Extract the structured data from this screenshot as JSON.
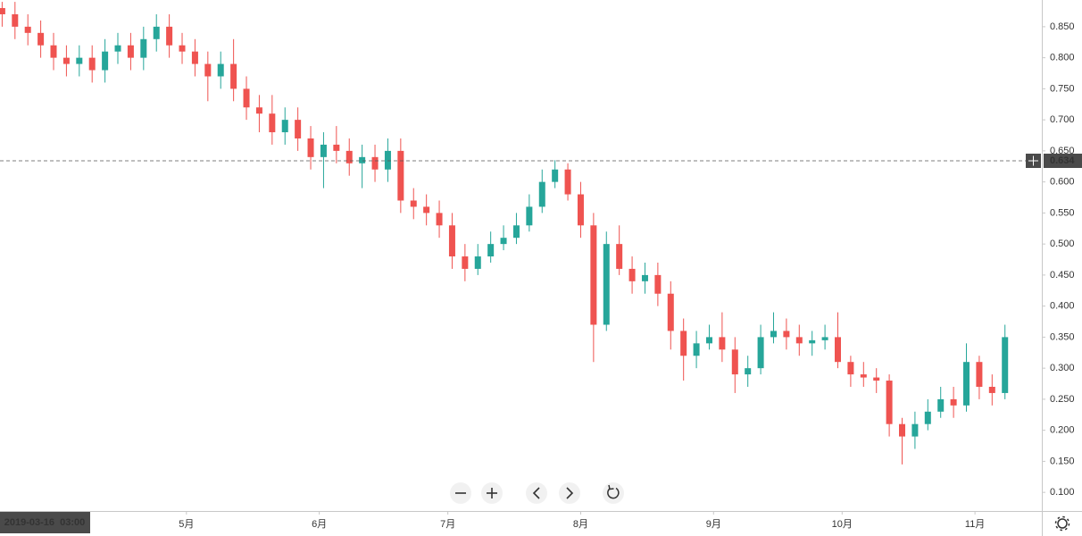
{
  "chart_data": {
    "type": "candlestick",
    "x": [
      3,
      6,
      9,
      12,
      15,
      18,
      21,
      24,
      27,
      30,
      33,
      36,
      39,
      42,
      45,
      48,
      51,
      54,
      57,
      60,
      63,
      66,
      69,
      72,
      75,
      78,
      81,
      84,
      87,
      90,
      93,
      96,
      99,
      102,
      105,
      108,
      111,
      114,
      117,
      120,
      123,
      126,
      129,
      132,
      135,
      138,
      141,
      144,
      147,
      150,
      153,
      156,
      159,
      162,
      165,
      168,
      171,
      174,
      177,
      180,
      183,
      186,
      189,
      192,
      195,
      198,
      201,
      204,
      207,
      210,
      213,
      216,
      219,
      222,
      225,
      228,
      231,
      234,
      237
    ],
    "open": [
      0.88,
      0.87,
      0.85,
      0.84,
      0.82,
      0.8,
      0.79,
      0.8,
      0.78,
      0.81,
      0.82,
      0.8,
      0.83,
      0.85,
      0.82,
      0.81,
      0.79,
      0.77,
      0.79,
      0.75,
      0.72,
      0.71,
      0.68,
      0.7,
      0.67,
      0.64,
      0.66,
      0.65,
      0.63,
      0.64,
      0.62,
      0.65,
      0.57,
      0.56,
      0.55,
      0.53,
      0.48,
      0.46,
      0.48,
      0.5,
      0.51,
      0.53,
      0.56,
      0.6,
      0.62,
      0.58,
      0.53,
      0.37,
      0.5,
      0.46,
      0.44,
      0.45,
      0.42,
      0.36,
      0.32,
      0.34,
      0.35,
      0.33,
      0.29,
      0.3,
      0.35,
      0.36,
      0.35,
      0.34,
      0.345,
      0.35,
      0.31,
      0.29,
      0.285,
      0.28,
      0.21,
      0.19,
      0.21,
      0.23,
      0.25,
      0.24,
      0.31,
      0.27,
      0.26
    ],
    "high": [
      0.89,
      0.89,
      0.87,
      0.86,
      0.84,
      0.82,
      0.82,
      0.82,
      0.83,
      0.84,
      0.84,
      0.85,
      0.87,
      0.87,
      0.84,
      0.83,
      0.81,
      0.81,
      0.83,
      0.77,
      0.74,
      0.74,
      0.72,
      0.72,
      0.69,
      0.68,
      0.69,
      0.67,
      0.66,
      0.66,
      0.67,
      0.67,
      0.59,
      0.58,
      0.57,
      0.55,
      0.5,
      0.5,
      0.52,
      0.53,
      0.55,
      0.58,
      0.62,
      0.635,
      0.63,
      0.6,
      0.55,
      0.52,
      0.53,
      0.48,
      0.47,
      0.47,
      0.44,
      0.38,
      0.36,
      0.37,
      0.39,
      0.35,
      0.32,
      0.37,
      0.39,
      0.38,
      0.37,
      0.36,
      0.37,
      0.39,
      0.32,
      0.31,
      0.3,
      0.29,
      0.22,
      0.23,
      0.25,
      0.27,
      0.27,
      0.34,
      0.32,
      0.29,
      0.37
    ],
    "low": [
      0.85,
      0.83,
      0.82,
      0.8,
      0.78,
      0.77,
      0.77,
      0.76,
      0.76,
      0.79,
      0.78,
      0.78,
      0.81,
      0.8,
      0.79,
      0.77,
      0.73,
      0.75,
      0.73,
      0.7,
      0.68,
      0.66,
      0.66,
      0.65,
      0.62,
      0.59,
      0.63,
      0.61,
      0.59,
      0.6,
      0.6,
      0.55,
      0.54,
      0.53,
      0.51,
      0.46,
      0.44,
      0.45,
      0.47,
      0.49,
      0.5,
      0.52,
      0.55,
      0.59,
      0.57,
      0.51,
      0.31,
      0.36,
      0.45,
      0.42,
      0.42,
      0.4,
      0.33,
      0.28,
      0.3,
      0.33,
      0.31,
      0.26,
      0.27,
      0.29,
      0.34,
      0.33,
      0.32,
      0.32,
      0.33,
      0.3,
      0.27,
      0.27,
      0.26,
      0.19,
      0.145,
      0.17,
      0.2,
      0.22,
      0.22,
      0.23,
      0.25,
      0.24,
      0.25
    ],
    "close": [
      0.87,
      0.85,
      0.84,
      0.82,
      0.8,
      0.79,
      0.8,
      0.78,
      0.81,
      0.82,
      0.8,
      0.83,
      0.85,
      0.82,
      0.81,
      0.79,
      0.77,
      0.79,
      0.75,
      0.72,
      0.71,
      0.68,
      0.7,
      0.67,
      0.64,
      0.66,
      0.65,
      0.63,
      0.64,
      0.62,
      0.65,
      0.57,
      0.56,
      0.55,
      0.53,
      0.48,
      0.46,
      0.48,
      0.5,
      0.51,
      0.53,
      0.56,
      0.6,
      0.62,
      0.58,
      0.53,
      0.37,
      0.5,
      0.46,
      0.44,
      0.45,
      0.42,
      0.36,
      0.32,
      0.34,
      0.35,
      0.33,
      0.29,
      0.3,
      0.35,
      0.36,
      0.35,
      0.34,
      0.345,
      0.35,
      0.31,
      0.29,
      0.285,
      0.28,
      0.21,
      0.19,
      0.21,
      0.23,
      0.25,
      0.24,
      0.31,
      0.27,
      0.26,
      0.35
    ],
    "up_color": "#26a69a",
    "down_color": "#ef5350",
    "xlim": [
      2.5,
      245.6
    ],
    "xticks": [
      {
        "value": 46,
        "label": "5月"
      },
      {
        "value": 77,
        "label": "6月"
      },
      {
        "value": 107,
        "label": "7月"
      },
      {
        "value": 138,
        "label": "8月"
      },
      {
        "value": 169,
        "label": "9月"
      },
      {
        "value": 199,
        "label": "10月"
      },
      {
        "value": 230,
        "label": "11月"
      }
    ],
    "ylim": [
      0.07,
      0.893
    ],
    "yticks": [
      {
        "value": 0.1,
        "label": "0.100"
      },
      {
        "value": 0.15,
        "label": "0.150"
      },
      {
        "value": 0.2,
        "label": "0.200"
      },
      {
        "value": 0.25,
        "label": "0.250"
      },
      {
        "value": 0.3,
        "label": "0.300"
      },
      {
        "value": 0.35,
        "label": "0.350"
      },
      {
        "value": 0.4,
        "label": "0.400"
      },
      {
        "value": 0.45,
        "label": "0.450"
      },
      {
        "value": 0.5,
        "label": "0.500"
      },
      {
        "value": 0.55,
        "label": "0.550"
      },
      {
        "value": 0.6,
        "label": "0.600"
      },
      {
        "value": 0.65,
        "label": "0.650"
      },
      {
        "value": 0.7,
        "label": "0.700"
      },
      {
        "value": 0.75,
        "label": "0.750"
      },
      {
        "value": 0.8,
        "label": "0.800"
      },
      {
        "value": 0.85,
        "label": "0.850"
      }
    ],
    "crosshair": {
      "price": 0.634,
      "time": "2019-03-16  03:00"
    }
  }
}
